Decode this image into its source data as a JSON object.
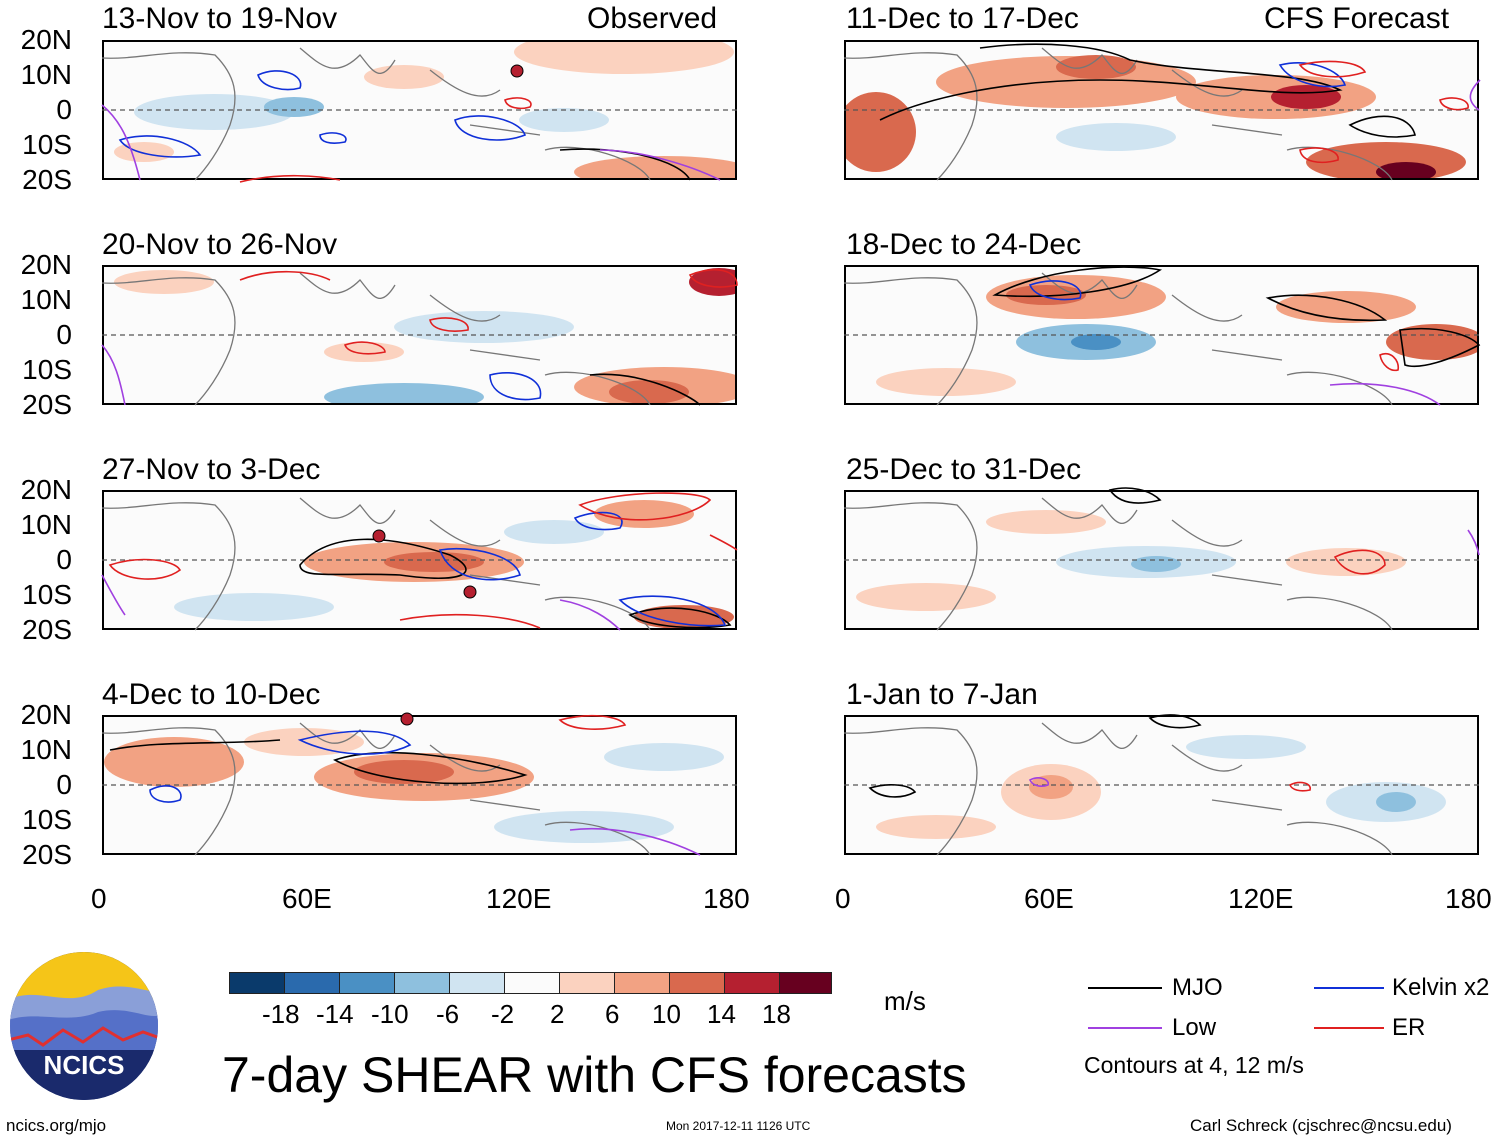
{
  "panels": [
    {
      "period": "13-Nov to 19-Nov",
      "tag": "Observed"
    },
    {
      "period": "20-Nov to 26-Nov",
      "tag": ""
    },
    {
      "period": "27-Nov to 3-Dec",
      "tag": ""
    },
    {
      "period": "4-Dec to 10-Dec",
      "tag": ""
    },
    {
      "period": "11-Dec to 17-Dec",
      "tag": "CFS Forecast"
    },
    {
      "period": "18-Dec to 24-Dec",
      "tag": ""
    },
    {
      "period": "25-Dec to 31-Dec",
      "tag": ""
    },
    {
      "period": "1-Jan to 7-Jan",
      "tag": ""
    }
  ],
  "y_axis": {
    "labels": [
      "20N",
      "10N",
      "0",
      "10S",
      "20S"
    ]
  },
  "x_axis": {
    "labels": [
      "0",
      "60E",
      "120E",
      "180"
    ]
  },
  "colorbar": {
    "colors": [
      "#0a3a6b",
      "#2a6aad",
      "#4a90c4",
      "#8ec0de",
      "#d0e4f1",
      "#fbfbfb",
      "#fbd2bf",
      "#f2a283",
      "#d9694e",
      "#b52030",
      "#67001f"
    ],
    "labels": [
      "-18",
      "-14",
      "-10",
      "-6",
      "-2",
      "2",
      "6",
      "10",
      "14",
      "18"
    ],
    "units": "m/s"
  },
  "main_title": "7-day SHEAR with CFS forecasts",
  "logo": {
    "text": "NCICS"
  },
  "legend": {
    "items": [
      {
        "label": "MJO",
        "color": "#000000"
      },
      {
        "label": "Kelvin x2",
        "color": "#1030d8"
      },
      {
        "label": "Low",
        "color": "#a040e0"
      },
      {
        "label": "ER",
        "color": "#e02020"
      }
    ],
    "note": "Contours at 4, 12 m/s"
  },
  "footer": {
    "left": "ncics.org/mjo",
    "center": "Mon 2017-12-11 1126 UTC",
    "right": "Carl Schreck (cjschrec@ncsu.edu)"
  }
}
